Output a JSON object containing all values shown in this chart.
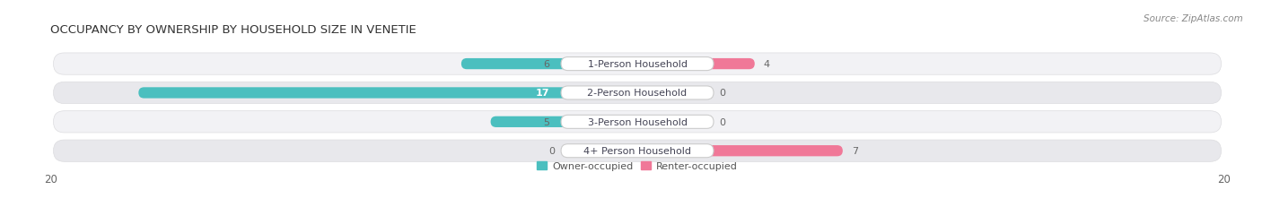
{
  "title": "OCCUPANCY BY OWNERSHIP BY HOUSEHOLD SIZE IN VENETIE",
  "source": "Source: ZipAtlas.com",
  "categories": [
    "1-Person Household",
    "2-Person Household",
    "3-Person Household",
    "4+ Person Household"
  ],
  "owner_values": [
    6,
    17,
    5,
    0
  ],
  "renter_values": [
    4,
    0,
    0,
    7
  ],
  "owner_color": "#4BBFBF",
  "renter_color": "#F07898",
  "renter_color_light": "#F5AABB",
  "row_bg_color_light": "#F2F2F5",
  "row_bg_color_dark": "#E8E8EC",
  "row_bg_border": "#DCDCDF",
  "axis_max": 20,
  "title_fontsize": 9.5,
  "label_fontsize": 8.0,
  "value_fontsize": 8.0,
  "tick_fontsize": 8.5,
  "source_fontsize": 7.5,
  "figsize": [
    14.06,
    2.32
  ],
  "dpi": 100
}
